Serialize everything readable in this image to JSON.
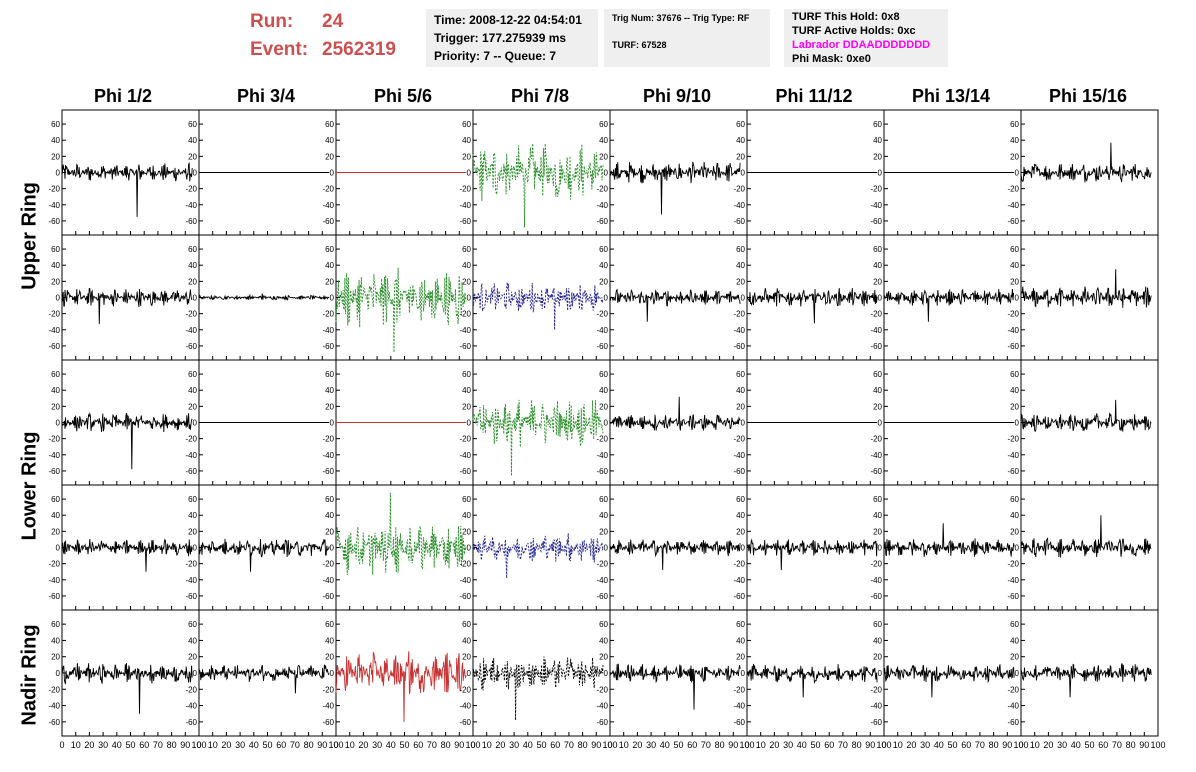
{
  "header": {
    "run_label": "Run:",
    "run_value": "24",
    "event_label": "Event:",
    "event_value": "2562319",
    "time_line": "Time: 2008-12-22 04:54:01",
    "trigger_line": "Trigger: 177.275939 ms",
    "priority_line": "Priority: 7 -- Queue: 7",
    "trig_num_line": "Trig Num: 37676 -- Trig Type: RF",
    "turf_line": "TURF: 67528",
    "turf_hold_line": "TURF This Hold: 0x8",
    "turf_active_line": "TURF Active Holds: 0xc",
    "labrador_line": "Labrador DDAADDDDDDD",
    "phi_mask_line": "Phi Mask: 0xe0"
  },
  "colors": {
    "run_text": "#cc5050",
    "magenta": "#ff00ff",
    "info_bg": "#efefef",
    "black": "#000000",
    "green": "#228b22",
    "blue": "#1c1c8c",
    "red": "#c83232"
  },
  "chart_data": {
    "type": "line",
    "columns": [
      "Phi 1/2",
      "Phi 3/4",
      "Phi 5/6",
      "Phi 7/8",
      "Phi 9/10",
      "Phi 11/12",
      "Phi 13/14",
      "Phi 15/16"
    ],
    "ring_labels": [
      "Upper Ring",
      "Lower Ring",
      "Nadir Ring"
    ],
    "xlim": [
      0,
      100
    ],
    "ylim": [
      -70,
      70
    ],
    "x_ticks": [
      0,
      10,
      20,
      30,
      40,
      50,
      60,
      70,
      80,
      90,
      100
    ],
    "y_ticks": [
      -60,
      -40,
      -20,
      0,
      20,
      40,
      60
    ],
    "trace_x_range": [
      0,
      95
    ],
    "grid": false,
    "rows": [
      {
        "cells": [
          {
            "color": "black",
            "style": "solid",
            "amp": 12,
            "peak": -55
          },
          {
            "color": "black",
            "style": "flat",
            "amp": 0,
            "peak": 0
          },
          {
            "color": "red",
            "style": "flat",
            "amp": 0,
            "peak": 0
          },
          {
            "color": "green",
            "style": "dashed",
            "amp": 38,
            "peak": -68
          },
          {
            "color": "black",
            "style": "solid",
            "amp": 14,
            "peak": -52
          },
          {
            "color": "black",
            "style": "flat",
            "amp": 0,
            "peak": 0
          },
          {
            "color": "black",
            "style": "flat",
            "amp": 0,
            "peak": 0
          },
          {
            "color": "black",
            "style": "solid",
            "amp": 13,
            "peak": 37
          }
        ]
      },
      {
        "cells": [
          {
            "color": "black",
            "style": "solid",
            "amp": 12,
            "peak": -33
          },
          {
            "color": "black",
            "style": "solid",
            "amp": 3,
            "peak": 5
          },
          {
            "color": "green",
            "style": "dashed",
            "amp": 40,
            "peak": -68
          },
          {
            "color": "blue",
            "style": "dashed",
            "amp": 20,
            "peak": -40
          },
          {
            "color": "black",
            "style": "solid",
            "amp": 11,
            "peak": -30
          },
          {
            "color": "black",
            "style": "solid",
            "amp": 12,
            "peak": -32
          },
          {
            "color": "black",
            "style": "solid",
            "amp": 11,
            "peak": -30
          },
          {
            "color": "black",
            "style": "solid",
            "amp": 14,
            "peak": 35
          }
        ]
      },
      {
        "cells": [
          {
            "color": "black",
            "style": "solid",
            "amp": 12,
            "peak": -58
          },
          {
            "color": "black",
            "style": "flat",
            "amp": 0,
            "peak": 0
          },
          {
            "color": "red",
            "style": "flat",
            "amp": 0,
            "peak": 0
          },
          {
            "color": "green",
            "style": "dashed",
            "amp": 32,
            "peak": -66
          },
          {
            "color": "black",
            "style": "solid",
            "amp": 11,
            "peak": 32
          },
          {
            "color": "black",
            "style": "flat",
            "amp": 0,
            "peak": 0
          },
          {
            "color": "black",
            "style": "flat",
            "amp": 0,
            "peak": 0
          },
          {
            "color": "black",
            "style": "solid",
            "amp": 12,
            "peak": 28
          }
        ]
      },
      {
        "cells": [
          {
            "color": "black",
            "style": "solid",
            "amp": 11,
            "peak": -30
          },
          {
            "color": "black",
            "style": "solid",
            "amp": 12,
            "peak": -30
          },
          {
            "color": "green",
            "style": "dashed",
            "amp": 35,
            "peak": 68
          },
          {
            "color": "blue",
            "style": "dashed",
            "amp": 20,
            "peak": -38
          },
          {
            "color": "black",
            "style": "solid",
            "amp": 11,
            "peak": -28
          },
          {
            "color": "black",
            "style": "solid",
            "amp": 11,
            "peak": -28
          },
          {
            "color": "black",
            "style": "solid",
            "amp": 12,
            "peak": 30
          },
          {
            "color": "black",
            "style": "solid",
            "amp": 13,
            "peak": 40
          }
        ]
      },
      {
        "cells": [
          {
            "color": "black",
            "style": "solid",
            "amp": 13,
            "peak": -50
          },
          {
            "color": "black",
            "style": "solid",
            "amp": 11,
            "peak": -25
          },
          {
            "color": "red",
            "style": "solid",
            "amp": 28,
            "peak": -60
          },
          {
            "color": "black",
            "style": "dashed",
            "amp": 22,
            "peak": -58
          },
          {
            "color": "black",
            "style": "solid",
            "amp": 12,
            "peak": -45
          },
          {
            "color": "black",
            "style": "solid",
            "amp": 12,
            "peak": -30
          },
          {
            "color": "black",
            "style": "solid",
            "amp": 12,
            "peak": -30
          },
          {
            "color": "black",
            "style": "solid",
            "amp": 12,
            "peak": -30
          }
        ]
      }
    ]
  }
}
